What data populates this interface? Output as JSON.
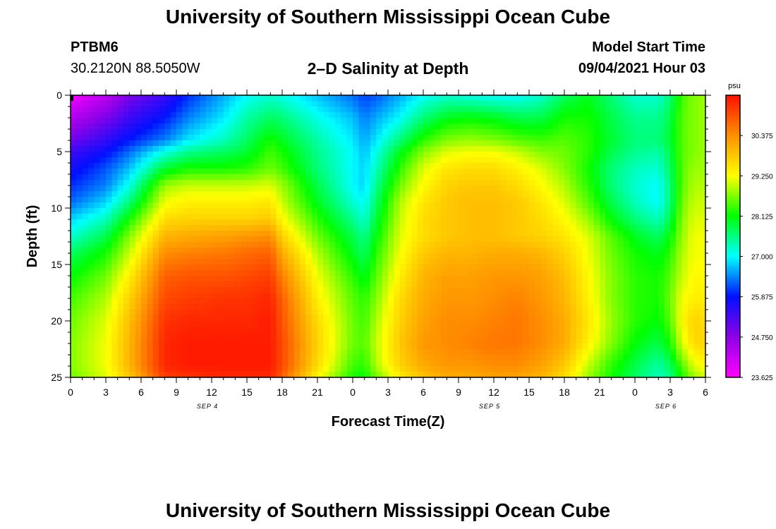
{
  "header": {
    "title": "University of Southern Mississippi Ocean Cube",
    "station": "PTBM6",
    "coords": "30.2120N  88.5050W",
    "plot_title": "2–D Salinity at Depth",
    "start_label": "Model Start Time",
    "start_value": "09/04/2021 Hour 03"
  },
  "footer": {
    "title": "University of Southern Mississippi Ocean Cube"
  },
  "chart_data": {
    "type": "heatmap",
    "title": "2–D Salinity at Depth",
    "xlabel": "Forecast Time(Z)",
    "ylabel": "Depth (ft)",
    "x_range_hours": [
      0,
      54
    ],
    "y_range_ft": [
      0,
      25
    ],
    "x_tick_labels": [
      "0",
      "3",
      "6",
      "9",
      "12",
      "15",
      "18",
      "21",
      "0",
      "3",
      "6",
      "9",
      "12",
      "15",
      "18",
      "21",
      "0",
      "3",
      "6"
    ],
    "y_tick_labels": [
      "0",
      "5",
      "10",
      "15",
      "20",
      "25"
    ],
    "date_labels": [
      {
        "text": "SEP 4",
        "hour": 12
      },
      {
        "text": "SEP 5",
        "hour": 36
      },
      {
        "text": "SEP 6",
        "hour": 51
      }
    ],
    "colorbar": {
      "unit": "psu",
      "min": 23.625,
      "max": 31.5,
      "tick_labels": [
        "30.375",
        "29.250",
        "28.125",
        "27.000",
        "25.875",
        "24.750",
        "23.625"
      ],
      "colors": [
        "#ff00ff",
        "#9000e8",
        "#0010ff",
        "#00ffff",
        "#00ff00",
        "#ffff00",
        "#ff9000",
        "#ff1000"
      ]
    },
    "grid_hours": [
      0,
      3,
      5,
      8,
      10,
      13,
      15,
      17,
      18,
      21,
      24,
      25,
      26,
      28,
      30,
      32,
      34,
      36,
      38,
      40,
      42,
      44,
      46,
      48,
      50,
      51,
      52,
      53,
      54
    ],
    "grid_depths": [
      0,
      2,
      4,
      5,
      6.5,
      8,
      9.5,
      11,
      12.5,
      14,
      16,
      18,
      20,
      22,
      24,
      25
    ],
    "salinity": [
      [
        23.7,
        24.3,
        24.9,
        25.4,
        26.0,
        26.6,
        27.0,
        27.2,
        27.1,
        26.7,
        26.3,
        26.1,
        26.2,
        26.6,
        27.0,
        27.2,
        27.1,
        27.0,
        27.0,
        27.2,
        27.7,
        28.0,
        27.6,
        27.2,
        27.2,
        27.6,
        28.4,
        28.7,
        28.8
      ],
      [
        24.4,
        24.9,
        25.4,
        25.9,
        26.4,
        26.9,
        27.4,
        27.7,
        27.6,
        27.1,
        26.7,
        26.4,
        26.6,
        27.0,
        27.6,
        28.0,
        28.1,
        28.0,
        27.8,
        27.8,
        28.2,
        28.2,
        27.8,
        27.5,
        27.5,
        27.8,
        28.5,
        28.7,
        28.8
      ],
      [
        25.0,
        25.5,
        25.9,
        26.4,
        26.9,
        27.3,
        27.7,
        28.2,
        28.0,
        27.4,
        26.9,
        26.6,
        26.9,
        27.6,
        28.3,
        28.7,
        28.8,
        28.7,
        28.5,
        28.4,
        28.5,
        28.3,
        27.9,
        27.6,
        27.6,
        27.9,
        28.5,
        28.7,
        28.8
      ],
      [
        25.4,
        25.8,
        26.3,
        27.1,
        27.5,
        27.7,
        27.9,
        28.4,
        28.2,
        27.5,
        27.0,
        26.7,
        27.1,
        28.0,
        28.7,
        29.1,
        29.2,
        29.2,
        29.0,
        28.7,
        28.6,
        28.3,
        27.8,
        27.5,
        27.4,
        27.8,
        28.5,
        28.7,
        28.8
      ],
      [
        25.7,
        26.2,
        26.7,
        27.9,
        28.2,
        28.2,
        28.3,
        28.6,
        28.4,
        27.6,
        27.0,
        26.8,
        27.3,
        28.3,
        29.1,
        29.5,
        29.6,
        29.6,
        29.4,
        29.1,
        28.7,
        28.2,
        27.6,
        27.3,
        27.2,
        27.7,
        28.5,
        28.8,
        28.8
      ],
      [
        26.0,
        26.4,
        27.1,
        28.8,
        29.0,
        29.0,
        29.0,
        29.1,
        28.8,
        27.8,
        27.0,
        26.8,
        27.5,
        28.6,
        29.3,
        29.7,
        29.8,
        29.8,
        29.6,
        29.3,
        28.9,
        28.3,
        27.6,
        27.2,
        27.0,
        27.6,
        28.5,
        28.9,
        28.9
      ],
      [
        26.3,
        26.8,
        27.6,
        29.2,
        29.4,
        29.4,
        29.4,
        29.5,
        29.0,
        28.0,
        27.2,
        27.0,
        27.7,
        28.9,
        29.5,
        29.8,
        29.9,
        29.9,
        29.8,
        29.5,
        29.1,
        28.5,
        27.8,
        27.3,
        27.0,
        27.6,
        28.6,
        29.0,
        29.0
      ],
      [
        26.8,
        27.3,
        28.2,
        29.6,
        29.7,
        29.7,
        29.7,
        29.8,
        29.3,
        28.3,
        27.5,
        27.2,
        27.9,
        29.0,
        29.6,
        29.8,
        29.9,
        29.9,
        29.8,
        29.6,
        29.3,
        28.8,
        28.1,
        27.6,
        27.3,
        27.8,
        28.7,
        29.1,
        29.1
      ],
      [
        27.2,
        27.8,
        28.7,
        30.0,
        30.1,
        30.2,
        30.3,
        30.4,
        29.7,
        28.6,
        27.8,
        27.5,
        28.1,
        29.1,
        29.6,
        29.8,
        29.9,
        29.9,
        29.8,
        29.7,
        29.5,
        29.1,
        28.5,
        28.0,
        27.7,
        28.1,
        28.8,
        29.2,
        29.2
      ],
      [
        27.7,
        28.2,
        29.0,
        30.4,
        30.5,
        30.6,
        30.7,
        30.8,
        30.1,
        28.9,
        28.0,
        27.7,
        28.3,
        29.2,
        29.8,
        30.0,
        30.0,
        30.1,
        30.1,
        30.0,
        29.7,
        29.2,
        28.6,
        28.2,
        28.0,
        28.3,
        28.9,
        29.2,
        29.2
      ],
      [
        28.1,
        28.6,
        29.4,
        30.8,
        30.9,
        30.9,
        31.0,
        31.1,
        30.5,
        29.2,
        28.3,
        28.0,
        28.5,
        29.4,
        30.0,
        30.2,
        30.2,
        30.3,
        30.3,
        30.2,
        29.9,
        29.3,
        28.7,
        28.3,
        28.2,
        28.5,
        29.0,
        29.3,
        29.3
      ],
      [
        28.4,
        28.9,
        29.7,
        31.0,
        31.1,
        31.2,
        31.2,
        31.3,
        30.8,
        29.4,
        28.5,
        28.3,
        28.7,
        29.6,
        30.1,
        30.3,
        30.3,
        30.4,
        30.5,
        30.3,
        30.0,
        29.4,
        28.7,
        28.3,
        28.2,
        28.6,
        29.2,
        29.4,
        29.4
      ],
      [
        28.6,
        29.1,
        29.9,
        31.2,
        31.3,
        31.3,
        31.3,
        31.4,
        30.9,
        29.6,
        28.6,
        28.4,
        28.9,
        29.7,
        30.2,
        30.4,
        30.4,
        30.5,
        30.6,
        30.4,
        30.1,
        29.5,
        28.8,
        28.3,
        28.1,
        28.5,
        29.3,
        29.7,
        29.6
      ],
      [
        28.7,
        29.2,
        30.0,
        31.3,
        31.4,
        31.4,
        31.4,
        31.4,
        31.0,
        29.7,
        28.6,
        28.5,
        29.0,
        29.8,
        30.3,
        30.4,
        30.5,
        30.6,
        30.6,
        30.4,
        30.1,
        29.4,
        28.7,
        28.1,
        27.8,
        28.2,
        29.1,
        29.6,
        29.7
      ],
      [
        28.7,
        29.2,
        30.0,
        31.3,
        31.4,
        31.4,
        31.4,
        31.4,
        31.0,
        29.6,
        28.4,
        28.3,
        28.9,
        29.7,
        30.1,
        30.3,
        30.3,
        30.4,
        30.4,
        30.2,
        29.8,
        29.0,
        28.3,
        27.8,
        27.4,
        27.7,
        28.5,
        29.1,
        29.3
      ],
      [
        28.6,
        29.1,
        29.8,
        31.1,
        31.2,
        31.3,
        31.3,
        31.3,
        30.8,
        29.3,
        28.2,
        28.1,
        28.6,
        29.4,
        29.9,
        30.1,
        30.1,
        30.2,
        30.2,
        30.0,
        29.6,
        28.8,
        28.2,
        27.7,
        27.3,
        27.5,
        28.2,
        28.8,
        29.0
      ]
    ]
  }
}
